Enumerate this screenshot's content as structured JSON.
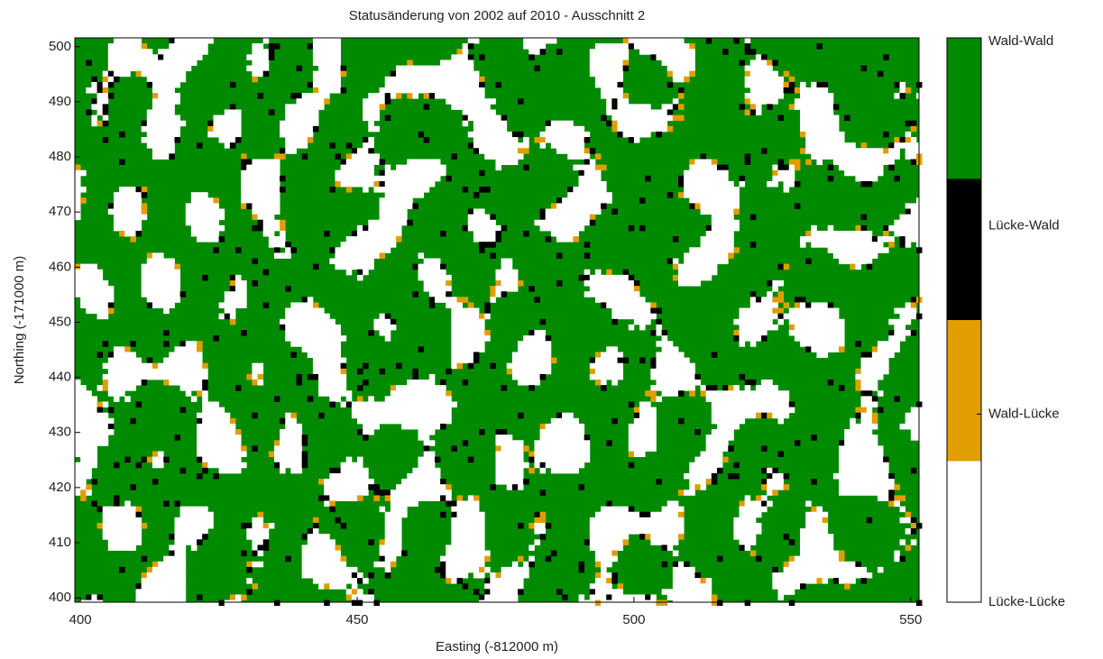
{
  "chart_data": {
    "type": "raster",
    "title": "Statusänderung von 2002 auf 2010 - Ausschnitt 2",
    "x_label": "Easting (-812000 m)",
    "y_label": "Northing (-171000 m)",
    "xlim": [
      399,
      551.5
    ],
    "xticks": [
      400,
      450,
      500,
      550
    ],
    "ylim": [
      399.2,
      501.6
    ],
    "yticks": [
      400,
      410,
      420,
      430,
      440,
      450,
      460,
      470,
      480,
      490,
      500
    ],
    "colorbar": {
      "categories": [
        "Lücke-Lücke",
        "Wald-Lücke",
        "Lücke-Wald",
        "Wald-Wald"
      ],
      "colors": [
        "#ffffff",
        "#e09e00",
        "#000000",
        "#008a00"
      ],
      "lim": [
        1,
        4
      ],
      "ticks": [
        1,
        2,
        3,
        4
      ]
    }
  }
}
